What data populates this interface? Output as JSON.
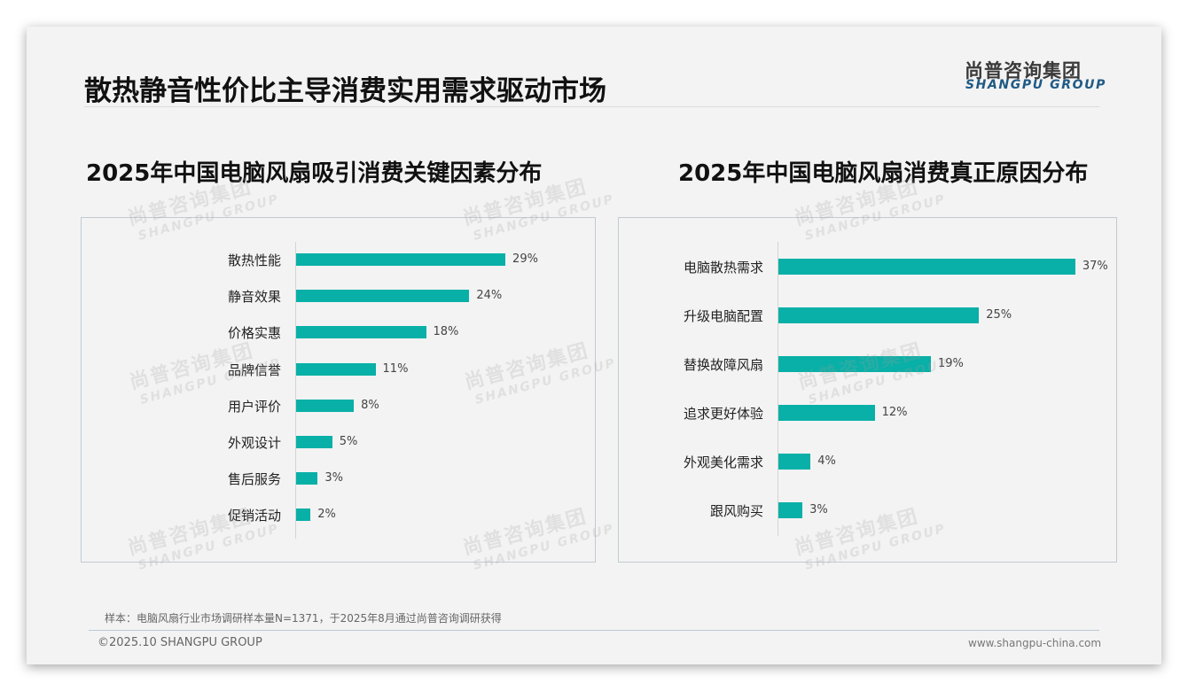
{
  "header": {
    "title": "散热静音性价比主导消费实用需求驱动市场",
    "logo_cn": "尚普咨询集团",
    "logo_en": "SHANGPU GROUP"
  },
  "watermark": {
    "cn": "尚普咨询集团",
    "en": "SHANGPU GROUP"
  },
  "colors": {
    "bar": "#08b0a7",
    "logo_en": "#1f5a85",
    "background": "#f3f3f3"
  },
  "footer": {
    "note": "样本：电脑风扇行业市场调研样本量N=1371，于2025年8月通过尚普咨询调研获得",
    "copyright": "©2025.10 SHANGPU GROUP",
    "website": "www.shangpu-china.com"
  },
  "chart_data": [
    {
      "type": "bar",
      "orientation": "horizontal",
      "title": "2025年中国电脑风扇吸引消费关键因素分布",
      "categories": [
        "散热性能",
        "静音效果",
        "价格实惠",
        "品牌信誉",
        "用户评价",
        "外观设计",
        "售后服务",
        "促销活动"
      ],
      "values": [
        29,
        24,
        18,
        11,
        8,
        5,
        3,
        2
      ],
      "labels": [
        "29%",
        "24%",
        "18%",
        "11%",
        "8%",
        "5%",
        "3%",
        "2%"
      ],
      "unit": "%",
      "xlabel": "",
      "ylabel": "",
      "grid": false,
      "legend": null
    },
    {
      "type": "bar",
      "orientation": "horizontal",
      "title": "2025年中国电脑风扇消费真正原因分布",
      "categories": [
        "电脑散热需求",
        "升级电脑配置",
        "替换故障风扇",
        "追求更好体验",
        "外观美化需求",
        "跟风购买"
      ],
      "values": [
        37,
        25,
        19,
        12,
        4,
        3
      ],
      "labels": [
        "37%",
        "25%",
        "19%",
        "12%",
        "4%",
        "3%"
      ],
      "unit": "%",
      "xlabel": "",
      "ylabel": "",
      "grid": false,
      "legend": null
    }
  ]
}
